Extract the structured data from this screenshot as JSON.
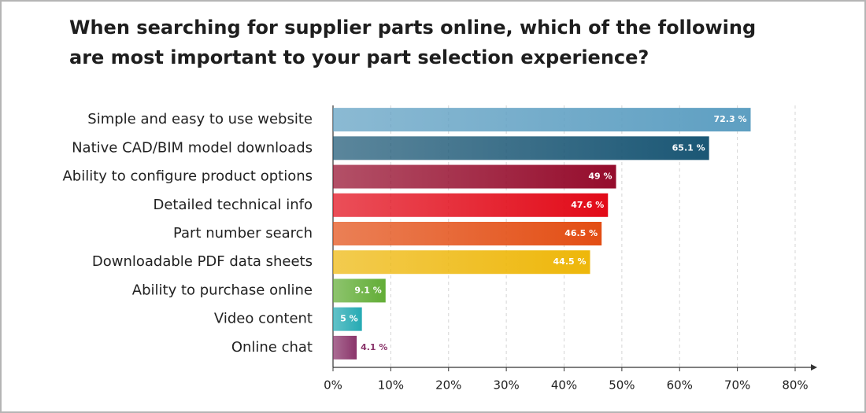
{
  "chart_data": {
    "type": "bar",
    "orientation": "horizontal",
    "title": "When searching for supplier parts online, which of the following are most important to your part selection experience?",
    "categories": [
      "Simple and easy to use website",
      "Native CAD/BIM model downloads",
      "Ability to configure product options",
      "Detailed technical info",
      "Part number search",
      "Downloadable PDF data sheets",
      "Ability to purchase online",
      "Video content",
      "Online chat"
    ],
    "values": [
      72.3,
      65.1,
      49,
      47.6,
      46.5,
      44.5,
      9.1,
      5,
      4.1
    ],
    "value_labels": [
      "72.3 %",
      "65.1 %",
      "49 %",
      "47.6 %",
      "46.5 %",
      "44.5 %",
      "9.1 %",
      "5 %",
      "4.1 %"
    ],
    "colors": [
      "#5e9fc2",
      "#1b5775",
      "#950c2c",
      "#e20a18",
      "#e34e14",
      "#eeb70a",
      "#62ad36",
      "#25aab3",
      "#8a346a"
    ],
    "xlim": [
      0,
      80
    ],
    "xticks": [
      {
        "value": 0,
        "label": "0%"
      },
      {
        "value": 10,
        "label": "10%"
      },
      {
        "value": 20,
        "label": "20%"
      },
      {
        "value": 30,
        "label": "30%"
      },
      {
        "value": 40,
        "label": "40%"
      },
      {
        "value": 50,
        "label": "50%"
      },
      {
        "value": 60,
        "label": "60%"
      },
      {
        "value": 70,
        "label": "70%"
      },
      {
        "value": 80,
        "label": "80%"
      }
    ],
    "grid": true
  }
}
